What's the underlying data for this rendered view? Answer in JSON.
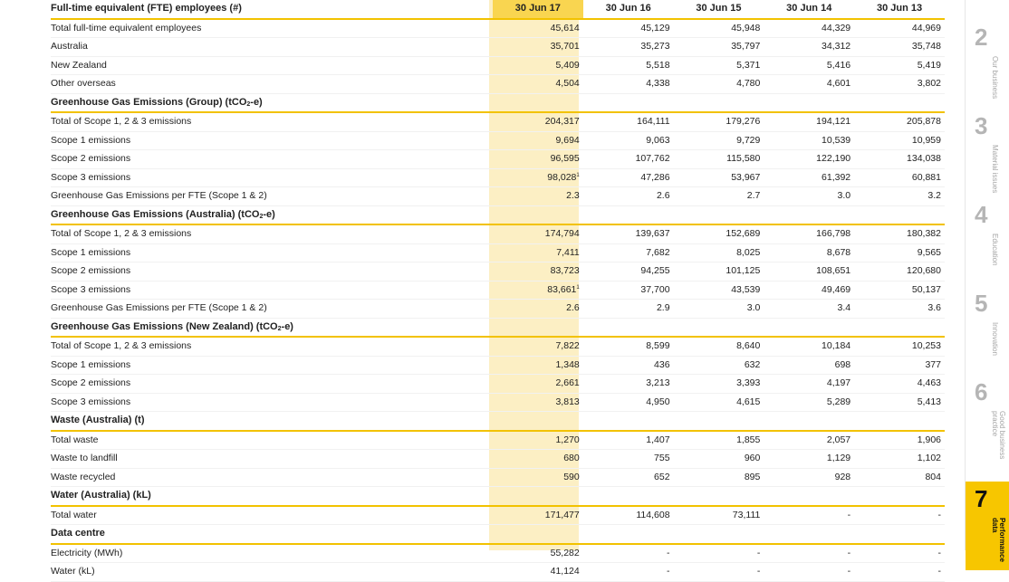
{
  "columns": {
    "label": "Full-time equivalent (FTE) employees (#)",
    "years": [
      "30 Jun 17",
      "30 Jun 16",
      "30 Jun 15",
      "30 Jun 14",
      "30 Jun 13"
    ]
  },
  "fte_rows": [
    {
      "label": "Total full-time equivalent employees",
      "values": [
        "45,614",
        "45,129",
        "45,948",
        "44,329",
        "44,969"
      ]
    },
    {
      "label": "Australia",
      "values": [
        "35,701",
        "35,273",
        "35,797",
        "34,312",
        "35,748"
      ]
    },
    {
      "label": "New Zealand",
      "values": [
        "5,409",
        "5,518",
        "5,371",
        "5,416",
        "5,419"
      ]
    },
    {
      "label": "Other overseas",
      "values": [
        "4,504",
        "4,338",
        "4,780",
        "4,601",
        "3,802"
      ]
    }
  ],
  "ghg_group": {
    "title_pre": "Greenhouse Gas Emissions (Group) (tCO",
    "title_sub": "2",
    "title_post": "-e)",
    "rows": [
      {
        "label": "Total of Scope 1, 2 & 3 emissions",
        "values": [
          "204,317",
          "164,111",
          "179,276",
          "194,121",
          "205,878"
        ]
      },
      {
        "label": "Scope 1 emissions",
        "values": [
          "9,694",
          "9,063",
          "9,729",
          "10,539",
          "10,959"
        ]
      },
      {
        "label": "Scope 2 emissions",
        "values": [
          "96,595",
          "107,762",
          "115,580",
          "122,190",
          "134,038"
        ]
      },
      {
        "label": "Scope 3 emissions",
        "values": [
          "98,028",
          "47,286",
          "53,967",
          "61,392",
          "60,881"
        ],
        "note": "1"
      },
      {
        "label": "Greenhouse Gas Emissions per FTE (Scope 1 & 2)",
        "values": [
          "2.3",
          "2.6",
          "2.7",
          "3.0",
          "3.2"
        ]
      }
    ]
  },
  "ghg_aus": {
    "title_pre": "Greenhouse Gas Emissions (Australia) (tCO",
    "title_sub": "2",
    "title_post": "-e)",
    "rows": [
      {
        "label": "Total of Scope 1, 2 & 3 emissions",
        "values": [
          "174,794",
          "139,637",
          "152,689",
          "166,798",
          "180,382"
        ]
      },
      {
        "label": "Scope 1 emissions",
        "values": [
          "7,411",
          "7,682",
          "8,025",
          "8,678",
          "9,565"
        ]
      },
      {
        "label": "Scope 2 emissions",
        "values": [
          "83,723",
          "94,255",
          "101,125",
          "108,651",
          "120,680"
        ]
      },
      {
        "label": "Scope 3 emissions",
        "values": [
          "83,661",
          "37,700",
          "43,539",
          "49,469",
          "50,137"
        ],
        "note": "1"
      },
      {
        "label": "Greenhouse Gas Emissions per FTE (Scope 1 & 2)",
        "values": [
          "2.6",
          "2.9",
          "3.0",
          "3.4",
          "3.6"
        ]
      }
    ]
  },
  "ghg_nz": {
    "title_pre": "Greenhouse Gas Emissions (New Zealand) (tCO",
    "title_sub": "2",
    "title_post": "-e)",
    "rows": [
      {
        "label": "Total of Scope 1, 2 & 3 emissions",
        "values": [
          "7,822",
          "8,599",
          "8,640",
          "10,184",
          "10,253"
        ]
      },
      {
        "label": "Scope 1 emissions",
        "values": [
          "1,348",
          "436",
          "632",
          "698",
          "377"
        ]
      },
      {
        "label": "Scope 2 emissions",
        "values": [
          "2,661",
          "3,213",
          "3,393",
          "4,197",
          "4,463"
        ]
      },
      {
        "label": "Scope 3 emissions",
        "values": [
          "3,813",
          "4,950",
          "4,615",
          "5,289",
          "5,413"
        ]
      }
    ]
  },
  "waste": {
    "title": "Waste (Australia) (t)",
    "rows": [
      {
        "label": "Total waste",
        "values": [
          "1,270",
          "1,407",
          "1,855",
          "2,057",
          "1,906"
        ]
      },
      {
        "label": "Waste to landfill",
        "values": [
          "680",
          "755",
          "960",
          "1,129",
          "1,102"
        ]
      },
      {
        "label": "Waste recycled",
        "values": [
          "590",
          "652",
          "895",
          "928",
          "804"
        ]
      }
    ]
  },
  "water": {
    "title": "Water (Australia) (kL)",
    "rows": [
      {
        "label": "Total water",
        "values": [
          "171,477",
          "114,608",
          "73,111",
          "-",
          "-"
        ]
      }
    ]
  },
  "data_centre": {
    "title": "Data centre",
    "rows": [
      {
        "label": "Electricity (MWh)",
        "values": [
          "55,282",
          "-",
          "-",
          "-",
          "-"
        ]
      },
      {
        "label": "Water (kL)",
        "values": [
          "41,124",
          "-",
          "-",
          "-",
          "-"
        ]
      }
    ]
  },
  "side_tabs": [
    {
      "num": "2",
      "text": "Our business"
    },
    {
      "num": "3",
      "text": "Material issues"
    },
    {
      "num": "4",
      "text": "Education"
    },
    {
      "num": "5",
      "text": "Innovation"
    },
    {
      "num": "6",
      "text": "Good business practice"
    },
    {
      "num": "7",
      "text": "Performance data",
      "active": true
    }
  ],
  "colors": {
    "accent": "#f7c600",
    "highlight_column": "#fcefc4",
    "rule": "#f2c200"
  }
}
